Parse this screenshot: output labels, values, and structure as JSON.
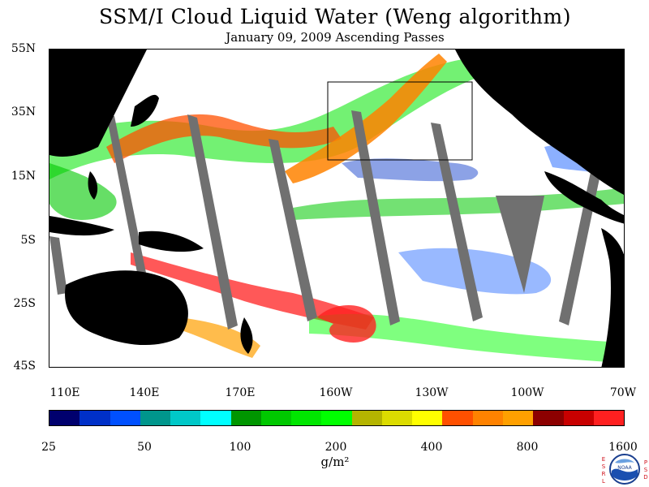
{
  "title": "SSM/I Cloud Liquid Water (Weng algorithm)",
  "subtitle": "January 09, 2009  Ascending Passes",
  "map": {
    "lat_labels": [
      "55N",
      "35N",
      "15N",
      "5S",
      "25S",
      "45S"
    ],
    "lon_labels": [
      "110E",
      "140E",
      "170E",
      "160W",
      "130W",
      "100W",
      "70W"
    ],
    "lat_range": [
      -45,
      55
    ],
    "lon_range": [
      110,
      290
    ],
    "inset_box": {
      "lon": [
        199,
        251
      ],
      "lat": [
        21,
        45
      ]
    },
    "land_color": "#000000",
    "no_data_color": "#707070",
    "ocean_clear_color": "#ffffff"
  },
  "colorbar": {
    "labels": [
      "25",
      "50",
      "100",
      "200",
      "400",
      "800",
      "1600"
    ],
    "colors": [
      "#00006e",
      "#0030c8",
      "#0050ff",
      "#00968c",
      "#00c8c8",
      "#00ffff",
      "#009600",
      "#00c800",
      "#00e600",
      "#00ff00",
      "#b4b400",
      "#dcdc00",
      "#ffff00",
      "#ff5000",
      "#ff8200",
      "#ffa000",
      "#8c0000",
      "#c80000",
      "#ff2020"
    ],
    "units": "g/m²"
  },
  "logo": {
    "left_letters": [
      "E",
      "S",
      "R",
      "L"
    ],
    "right_letters": [
      "P",
      "S",
      "D"
    ],
    "center_text": "NOAA"
  }
}
